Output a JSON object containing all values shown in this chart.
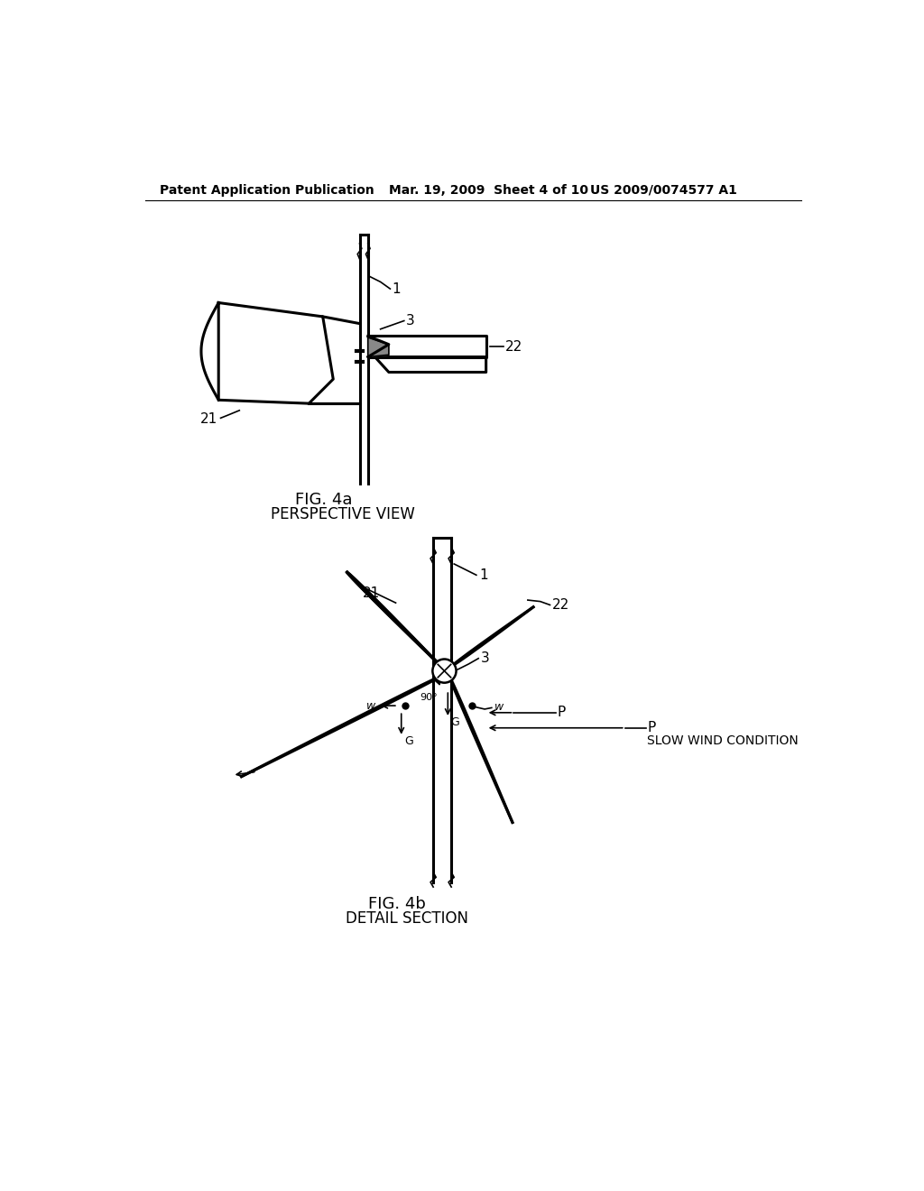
{
  "header_left": "Patent Application Publication",
  "header_mid": "Mar. 19, 2009  Sheet 4 of 10",
  "header_right": "US 2009/0074577 A1",
  "fig4a_label": "FIG. 4a",
  "fig4a_sublabel": "PERSPECTIVE VIEW",
  "fig4b_label": "FIG. 4b",
  "fig4b_sublabel": "DETAIL SECTION",
  "bg_color": "#ffffff",
  "line_color": "#000000",
  "font_size_header": 10,
  "font_size_label": 13,
  "font_size_ref": 11,
  "font_size_small": 9
}
